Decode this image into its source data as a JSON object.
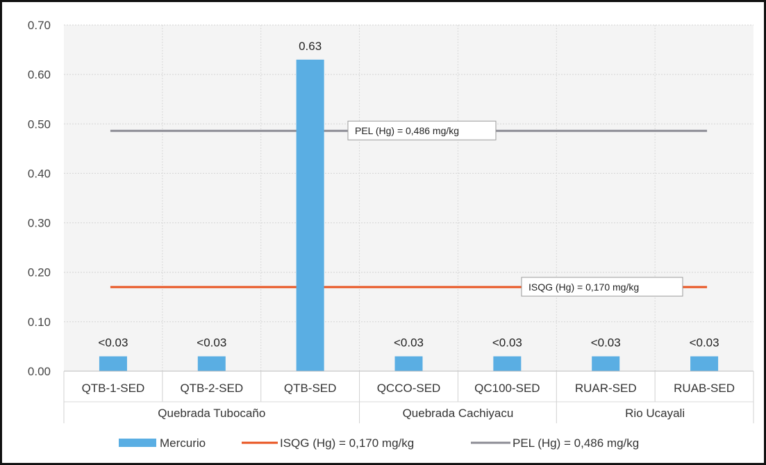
{
  "chart_data": {
    "type": "bar",
    "categories": [
      "QTB-1-SED",
      "QTB-2-SED",
      "QTB-SED",
      "QCCO-SED",
      "QC100-SED",
      "RUAR-SED",
      "RUAB-SED"
    ],
    "groups": [
      {
        "label": "Quebrada Tubocaño",
        "categories": [
          "QTB-1-SED",
          "QTB-2-SED",
          "QTB-SED"
        ]
      },
      {
        "label": "Quebrada Cachiyacu",
        "categories": [
          "QCCO-SED",
          "QC100-SED"
        ]
      },
      {
        "label": "Rio Ucayali",
        "categories": [
          "RUAR-SED",
          "RUAB-SED"
        ]
      }
    ],
    "series": [
      {
        "name": "Mercurio",
        "type": "bar",
        "color": "#5aaee3",
        "values": [
          0.03,
          0.03,
          0.63,
          0.03,
          0.03,
          0.03,
          0.03
        ],
        "data_labels": [
          "<0.03",
          "<0.03",
          "0.63",
          "<0.03",
          "<0.03",
          "<0.03",
          "<0.03"
        ]
      },
      {
        "name": "ISQG (Hg) = 0,170 mg/kg",
        "type": "line",
        "color": "#e8531f",
        "value": 0.17
      },
      {
        "name": "PEL (Hg) = 0,486 mg/kg",
        "type": "line",
        "color": "#8c8c94",
        "value": 0.486
      }
    ],
    "annotations": [
      {
        "text": "PEL (Hg) = 0,486 mg/kg",
        "series": "PEL (Hg) = 0,486 mg/kg"
      },
      {
        "text": "ISQG (Hg) = 0,170 mg/kg",
        "series": "ISQG (Hg) = 0,170 mg/kg"
      }
    ],
    "y_ticks": [
      "0.00",
      "0.10",
      "0.20",
      "0.30",
      "0.40",
      "0.50",
      "0.60",
      "0.70"
    ],
    "ylim": [
      0,
      0.7
    ],
    "title": "",
    "xlabel": "",
    "ylabel": "",
    "grid": true,
    "legend_position": "bottom"
  }
}
